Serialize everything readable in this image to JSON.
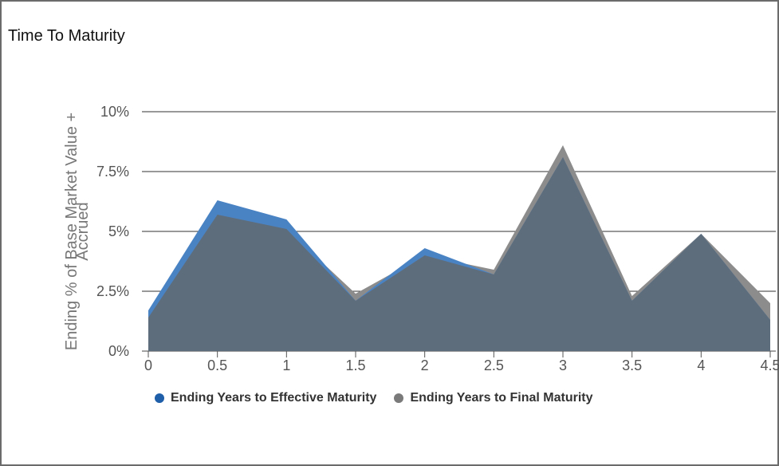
{
  "title": "Time To Maturity",
  "chart_data": {
    "type": "area",
    "ylabel": "Ending % of Base Market Value + Accrued",
    "ylabel_lines": [
      "Ending % of Base Market Value +",
      "Accrued"
    ],
    "ylim": [
      0,
      10
    ],
    "yticks": [
      0,
      2.5,
      5,
      7.5,
      10
    ],
    "ytick_labels": [
      "0%",
      "2.5%",
      "5%",
      "7.5%",
      "10%"
    ],
    "x": [
      0,
      0.5,
      1,
      1.5,
      2,
      2.5,
      3,
      3.5,
      4,
      4.5
    ],
    "x_labels": [
      "0",
      "0.5",
      "1",
      "1.5",
      "2",
      "2.5",
      "3",
      "3.5",
      "4",
      "4.5"
    ],
    "xlim": [
      0,
      4.5
    ],
    "grid": "horizontal",
    "legend_position": "bottom",
    "series": [
      {
        "name": "Ending Years to Final Maturity",
        "color": "#8c8c8c",
        "values": [
          1.4,
          5.7,
          5.1,
          2.4,
          4.0,
          3.4,
          8.6,
          2.3,
          4.9,
          2.0
        ]
      },
      {
        "name": "Ending Years to Effective Maturity",
        "color": "#4a83c4",
        "values": [
          1.7,
          6.3,
          5.5,
          2.1,
          4.3,
          3.2,
          8.1,
          2.1,
          4.9,
          1.3
        ]
      }
    ],
    "overlap_color": "#5e6d7c"
  },
  "legend": [
    {
      "label": "Ending Years to Effective Maturity",
      "color": "#1f5ea8"
    },
    {
      "label": "Ending Years to Final Maturity",
      "color": "#7a7a7a"
    }
  ]
}
